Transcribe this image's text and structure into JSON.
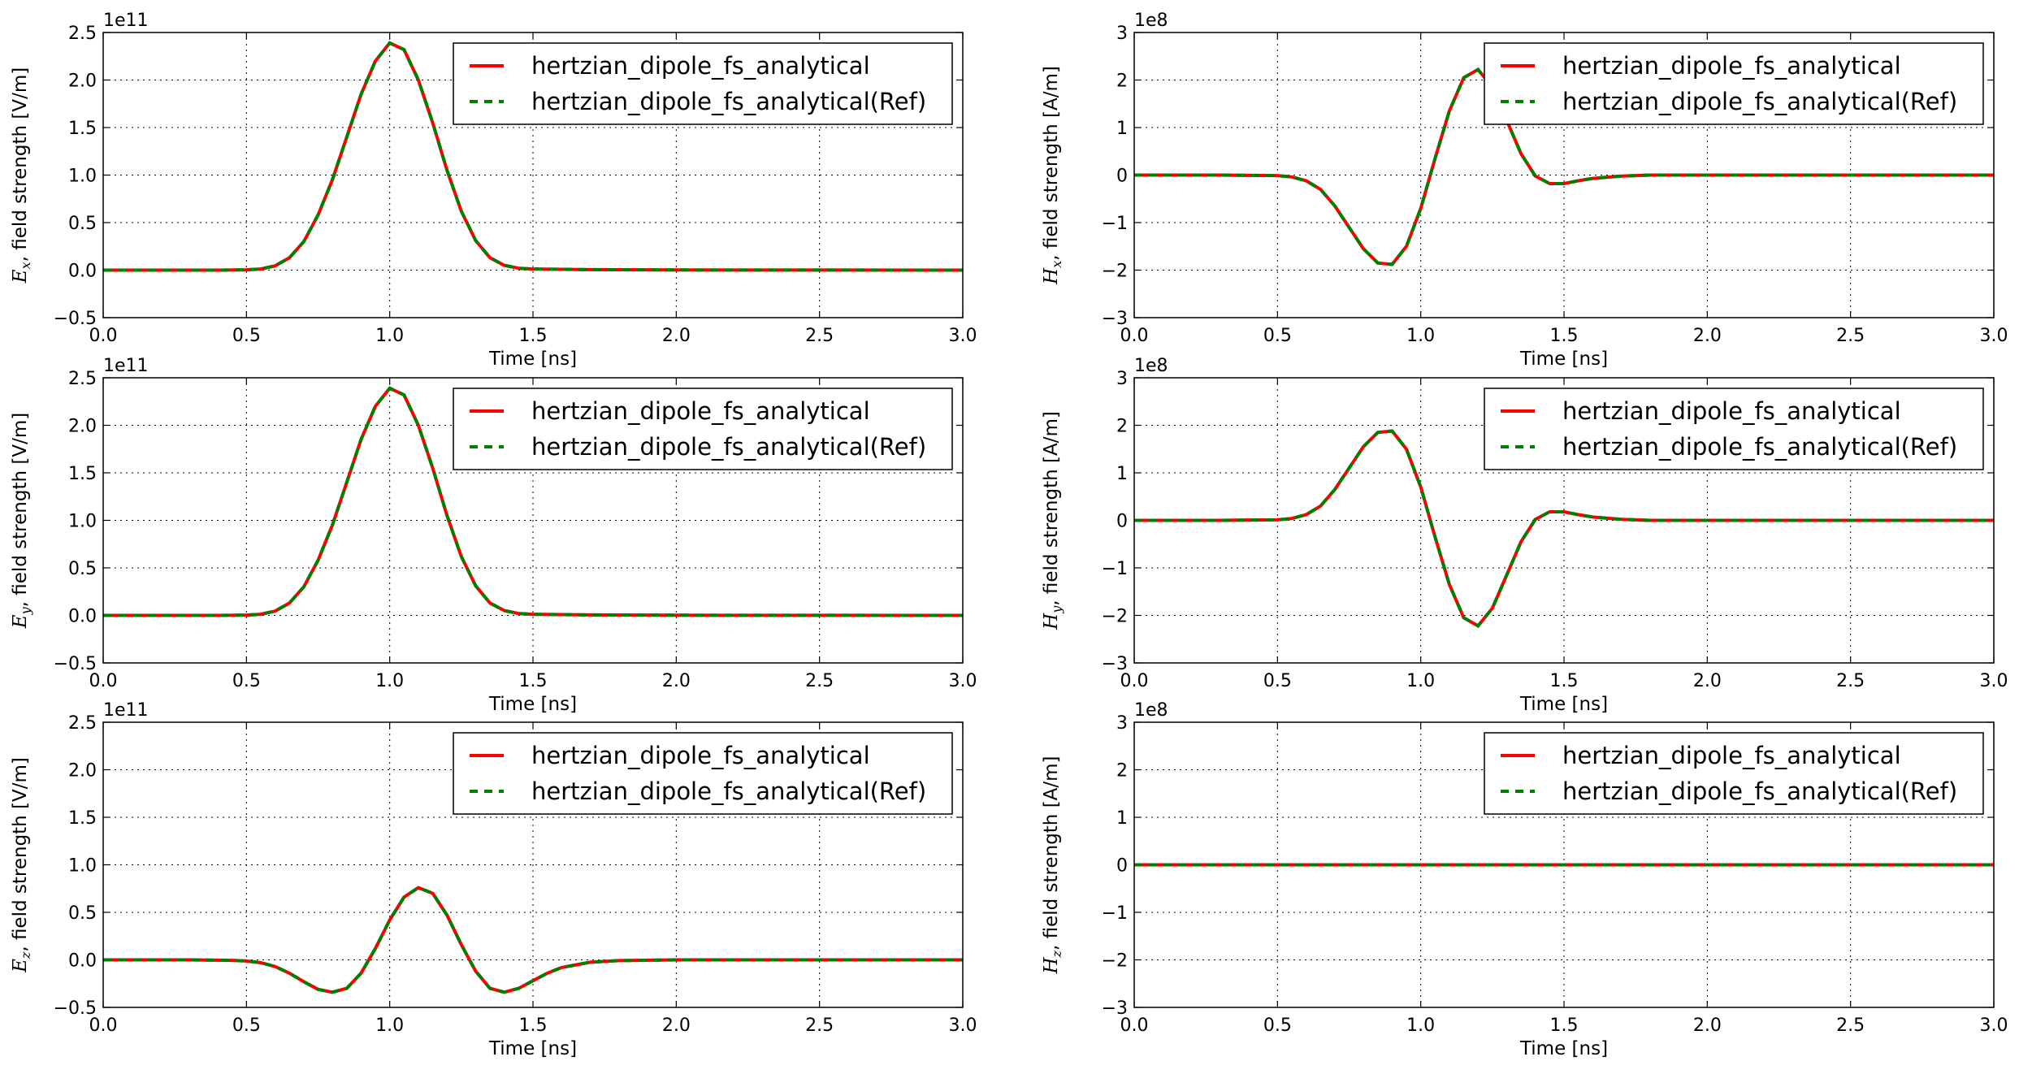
{
  "chart_data": [
    {
      "type": "line",
      "panel": "Ex",
      "xlabel": "Time [ns]",
      "ylabel_symbol": "E",
      "ylabel_sub": "x",
      "ylabel_rest": ", field strength [V/m]",
      "offset_text": "1e11",
      "xlim": [
        0,
        3.0
      ],
      "ylim": [
        -0.5,
        2.5
      ],
      "xticks": [
        "0.0",
        "0.5",
        "1.0",
        "1.5",
        "2.0",
        "2.5",
        "3.0"
      ],
      "yticks": [
        "−0.5",
        "0.0",
        "0.5",
        "1.0",
        "1.5",
        "2.0",
        "2.5"
      ],
      "x": [
        0.0,
        0.2,
        0.4,
        0.5,
        0.55,
        0.6,
        0.65,
        0.7,
        0.75,
        0.8,
        0.85,
        0.9,
        0.95,
        1.0,
        1.05,
        1.1,
        1.15,
        1.2,
        1.25,
        1.3,
        1.35,
        1.4,
        1.45,
        1.5,
        1.7,
        2.0,
        2.5,
        3.0
      ],
      "series": [
        {
          "name": "hertzian_dipole_fs_analytical",
          "values": [
            0,
            0,
            0,
            0.003,
            0.012,
            0.045,
            0.13,
            0.3,
            0.58,
            0.95,
            1.4,
            1.85,
            2.2,
            2.39,
            2.32,
            2.0,
            1.55,
            1.05,
            0.62,
            0.31,
            0.13,
            0.05,
            0.02,
            0.012,
            0.005,
            0.002,
            0.001,
            0
          ]
        },
        {
          "name": "hertzian_dipole_fs_analytical(Ref)",
          "values": [
            0,
            0,
            0,
            0.003,
            0.012,
            0.045,
            0.13,
            0.3,
            0.58,
            0.95,
            1.4,
            1.85,
            2.2,
            2.39,
            2.32,
            2.0,
            1.55,
            1.05,
            0.62,
            0.31,
            0.13,
            0.05,
            0.02,
            0.012,
            0.005,
            0.002,
            0.001,
            0
          ]
        }
      ]
    },
    {
      "type": "line",
      "panel": "Hx",
      "xlabel": "Time [ns]",
      "ylabel_symbol": "H",
      "ylabel_sub": "x",
      "ylabel_rest": ", field strength [A/m]",
      "offset_text": "1e8",
      "xlim": [
        0,
        3.0
      ],
      "ylim": [
        -3,
        3
      ],
      "xticks": [
        "0.0",
        "0.5",
        "1.0",
        "1.5",
        "2.0",
        "2.5",
        "3.0"
      ],
      "yticks": [
        "−3",
        "−2",
        "−1",
        "0",
        "1",
        "2",
        "3"
      ],
      "x": [
        0.0,
        0.3,
        0.5,
        0.55,
        0.6,
        0.65,
        0.7,
        0.75,
        0.8,
        0.85,
        0.9,
        0.95,
        1.0,
        1.05,
        1.1,
        1.15,
        1.2,
        1.25,
        1.3,
        1.35,
        1.4,
        1.45,
        1.5,
        1.55,
        1.6,
        1.7,
        1.8,
        2.0,
        2.5,
        3.0
      ],
      "series": [
        {
          "name": "hertzian_dipole_fs_analytical",
          "values": [
            0,
            0,
            -0.01,
            -0.04,
            -0.12,
            -0.3,
            -0.65,
            -1.1,
            -1.55,
            -1.85,
            -1.88,
            -1.5,
            -0.7,
            0.35,
            1.35,
            2.05,
            2.22,
            1.85,
            1.15,
            0.45,
            -0.02,
            -0.18,
            -0.18,
            -0.12,
            -0.07,
            -0.02,
            0,
            0,
            0,
            0
          ]
        },
        {
          "name": "hertzian_dipole_fs_analytical(Ref)",
          "values": [
            0,
            0,
            -0.01,
            -0.04,
            -0.12,
            -0.3,
            -0.65,
            -1.1,
            -1.55,
            -1.85,
            -1.88,
            -1.5,
            -0.7,
            0.35,
            1.35,
            2.05,
            2.22,
            1.85,
            1.15,
            0.45,
            -0.02,
            -0.18,
            -0.18,
            -0.12,
            -0.07,
            -0.02,
            0,
            0,
            0,
            0
          ]
        }
      ]
    },
    {
      "type": "line",
      "panel": "Ey",
      "xlabel": "Time [ns]",
      "ylabel_symbol": "E",
      "ylabel_sub": "y",
      "ylabel_rest": ", field strength [V/m]",
      "offset_text": "1e11",
      "xlim": [
        0,
        3.0
      ],
      "ylim": [
        -0.5,
        2.5
      ],
      "xticks": [
        "0.0",
        "0.5",
        "1.0",
        "1.5",
        "2.0",
        "2.5",
        "3.0"
      ],
      "yticks": [
        "−0.5",
        "0.0",
        "0.5",
        "1.0",
        "1.5",
        "2.0",
        "2.5"
      ],
      "x": [
        0.0,
        0.2,
        0.4,
        0.5,
        0.55,
        0.6,
        0.65,
        0.7,
        0.75,
        0.8,
        0.85,
        0.9,
        0.95,
        1.0,
        1.05,
        1.1,
        1.15,
        1.2,
        1.25,
        1.3,
        1.35,
        1.4,
        1.45,
        1.5,
        1.7,
        2.0,
        2.5,
        3.0
      ],
      "series": [
        {
          "name": "hertzian_dipole_fs_analytical",
          "values": [
            0,
            0,
            0,
            0.003,
            0.012,
            0.045,
            0.13,
            0.3,
            0.58,
            0.95,
            1.4,
            1.85,
            2.2,
            2.39,
            2.32,
            2.0,
            1.55,
            1.05,
            0.62,
            0.31,
            0.13,
            0.05,
            0.02,
            0.012,
            0.005,
            0.002,
            0.001,
            0
          ]
        },
        {
          "name": "hertzian_dipole_fs_analytical(Ref)",
          "values": [
            0,
            0,
            0,
            0.003,
            0.012,
            0.045,
            0.13,
            0.3,
            0.58,
            0.95,
            1.4,
            1.85,
            2.2,
            2.39,
            2.32,
            2.0,
            1.55,
            1.05,
            0.62,
            0.31,
            0.13,
            0.05,
            0.02,
            0.012,
            0.005,
            0.002,
            0.001,
            0
          ]
        }
      ]
    },
    {
      "type": "line",
      "panel": "Hy",
      "xlabel": "Time [ns]",
      "ylabel_symbol": "H",
      "ylabel_sub": "y",
      "ylabel_rest": ", field strength [A/m]",
      "offset_text": "1e8",
      "xlim": [
        0,
        3.0
      ],
      "ylim": [
        -3,
        3
      ],
      "xticks": [
        "0.0",
        "0.5",
        "1.0",
        "1.5",
        "2.0",
        "2.5",
        "3.0"
      ],
      "yticks": [
        "−3",
        "−2",
        "−1",
        "0",
        "1",
        "2",
        "3"
      ],
      "x": [
        0.0,
        0.3,
        0.5,
        0.55,
        0.6,
        0.65,
        0.7,
        0.75,
        0.8,
        0.85,
        0.9,
        0.95,
        1.0,
        1.05,
        1.1,
        1.15,
        1.2,
        1.25,
        1.3,
        1.35,
        1.4,
        1.45,
        1.5,
        1.55,
        1.6,
        1.7,
        1.8,
        2.0,
        2.5,
        3.0
      ],
      "series": [
        {
          "name": "hertzian_dipole_fs_analytical",
          "values": [
            0,
            0,
            0.01,
            0.04,
            0.12,
            0.3,
            0.65,
            1.1,
            1.55,
            1.85,
            1.88,
            1.5,
            0.7,
            -0.35,
            -1.35,
            -2.05,
            -2.22,
            -1.85,
            -1.15,
            -0.45,
            0.02,
            0.18,
            0.18,
            0.12,
            0.07,
            0.02,
            0,
            0,
            0,
            0
          ]
        },
        {
          "name": "hertzian_dipole_fs_analytical(Ref)",
          "values": [
            0,
            0,
            0.01,
            0.04,
            0.12,
            0.3,
            0.65,
            1.1,
            1.55,
            1.85,
            1.88,
            1.5,
            0.7,
            -0.35,
            -1.35,
            -2.05,
            -2.22,
            -1.85,
            -1.15,
            -0.45,
            0.02,
            0.18,
            0.18,
            0.12,
            0.07,
            0.02,
            0,
            0,
            0,
            0
          ]
        }
      ]
    },
    {
      "type": "line",
      "panel": "Ez",
      "xlabel": "Time [ns]",
      "ylabel_symbol": "E",
      "ylabel_sub": "z",
      "ylabel_rest": ", field strength [V/m]",
      "offset_text": "1e11",
      "xlim": [
        0,
        3.0
      ],
      "ylim": [
        -0.5,
        2.5
      ],
      "xticks": [
        "0.0",
        "0.5",
        "1.0",
        "1.5",
        "2.0",
        "2.5",
        "3.0"
      ],
      "yticks": [
        "−0.5",
        "0.0",
        "0.5",
        "1.0",
        "1.5",
        "2.0",
        "2.5"
      ],
      "x": [
        0.0,
        0.3,
        0.45,
        0.5,
        0.55,
        0.6,
        0.65,
        0.7,
        0.75,
        0.8,
        0.85,
        0.9,
        0.95,
        1.0,
        1.05,
        1.1,
        1.15,
        1.2,
        1.25,
        1.3,
        1.35,
        1.4,
        1.45,
        1.5,
        1.55,
        1.6,
        1.7,
        1.8,
        2.0,
        2.5,
        3.0
      ],
      "series": [
        {
          "name": "hertzian_dipole_fs_analytical",
          "values": [
            0,
            0,
            -0.005,
            -0.012,
            -0.03,
            -0.07,
            -0.14,
            -0.23,
            -0.31,
            -0.34,
            -0.3,
            -0.14,
            0.12,
            0.42,
            0.66,
            0.76,
            0.7,
            0.47,
            0.16,
            -0.12,
            -0.3,
            -0.34,
            -0.3,
            -0.22,
            -0.14,
            -0.08,
            -0.025,
            -0.008,
            0,
            0,
            0
          ]
        },
        {
          "name": "hertzian_dipole_fs_analytical(Ref)",
          "values": [
            0,
            0,
            -0.005,
            -0.012,
            -0.03,
            -0.07,
            -0.14,
            -0.23,
            -0.31,
            -0.34,
            -0.3,
            -0.14,
            0.12,
            0.42,
            0.66,
            0.76,
            0.7,
            0.47,
            0.16,
            -0.12,
            -0.3,
            -0.34,
            -0.3,
            -0.22,
            -0.14,
            -0.08,
            -0.025,
            -0.008,
            0,
            0,
            0
          ]
        }
      ]
    },
    {
      "type": "line",
      "panel": "Hz",
      "xlabel": "Time [ns]",
      "ylabel_symbol": "H",
      "ylabel_sub": "z",
      "ylabel_rest": ", field strength [A/m]",
      "offset_text": "1e8",
      "xlim": [
        0,
        3.0
      ],
      "ylim": [
        -3,
        3
      ],
      "xticks": [
        "0.0",
        "0.5",
        "1.0",
        "1.5",
        "2.0",
        "2.5",
        "3.0"
      ],
      "yticks": [
        "−3",
        "−2",
        "−1",
        "0",
        "1",
        "2",
        "3"
      ],
      "x": [
        0.0,
        3.0
      ],
      "series": [
        {
          "name": "hertzian_dipole_fs_analytical",
          "values": [
            0,
            0
          ]
        },
        {
          "name": "hertzian_dipole_fs_analytical(Ref)",
          "values": [
            0,
            0
          ]
        }
      ]
    }
  ],
  "colors": {
    "series_1": "#ff0000",
    "series_2": "#008000",
    "grid": "#000000",
    "axes": "#000000"
  },
  "legend_placement": "top-right",
  "grid": true
}
